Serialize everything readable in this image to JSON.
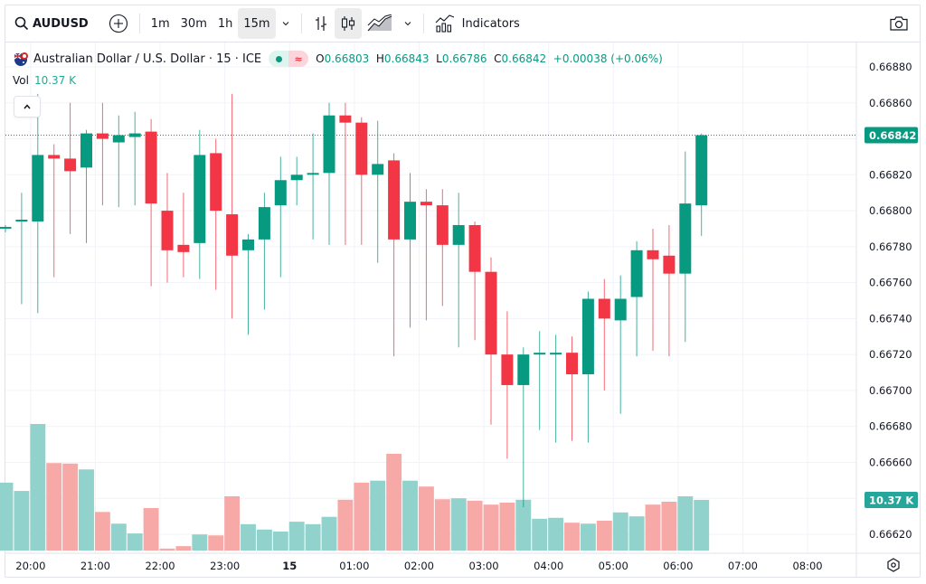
{
  "toolbar": {
    "symbol": "AUDUSD",
    "intervals": [
      "1m",
      "30m",
      "1h",
      "15m"
    ],
    "active_interval": "15m",
    "indicators_label": "Indicators",
    "icons": [
      "search-icon",
      "add-symbol-icon",
      "interval-dropdown-icon",
      "bar-chart-icon",
      "candles-icon",
      "area-chart-icon",
      "chart-type-dropdown-icon",
      "indicators-icon",
      "camera-icon"
    ]
  },
  "legend": {
    "title": "Australian Dollar / U.S. Dollar · 15 · ICE",
    "market_status_icon": "≈",
    "open_label": "O",
    "open": "0.66803",
    "high_label": "H",
    "high": "0.66843",
    "low_label": "L",
    "low": "0.66786",
    "close_label": "C",
    "close": "0.66842",
    "change": "+0.00038 (+0.06%)",
    "vol_label": "Vol",
    "vol_value": "10.37 K"
  },
  "colors": {
    "up": "#089981",
    "down": "#f23645",
    "vol_up": "#92d2cc",
    "vol_down": "#f7a9a7",
    "last_price_bg": "#089981",
    "vol_label_bg": "#26a69a"
  },
  "chart_data": {
    "type": "candlestick",
    "title": "Australian Dollar / U.S. Dollar · 15 · ICE",
    "interval": "15m",
    "ylim": [
      0.6661,
      0.6689
    ],
    "y_ticks": [
      "0.66880",
      "0.66860",
      "0.66820",
      "0.66800",
      "0.66780",
      "0.66760",
      "0.66740",
      "0.66720",
      "0.66700",
      "0.66680",
      "0.66660",
      "0.66620"
    ],
    "x_ticks": [
      {
        "label": "20:00",
        "bar": 1.5
      },
      {
        "label": "21:00",
        "bar": 5.5
      },
      {
        "label": "22:00",
        "bar": 9.5
      },
      {
        "label": "23:00",
        "bar": 13.5
      },
      {
        "label": "15",
        "bar": 17.5,
        "bold": true
      },
      {
        "label": "01:00",
        "bar": 21.5
      },
      {
        "label": "02:00",
        "bar": 25.5
      },
      {
        "label": "03:00",
        "bar": 29.5
      },
      {
        "label": "04:00",
        "bar": 33.5
      },
      {
        "label": "05:00",
        "bar": 37.5
      },
      {
        "label": "06:00",
        "bar": 41.5
      },
      {
        "label": "07:00",
        "bar": 45.5
      },
      {
        "label": "08:00",
        "bar": 49.5
      }
    ],
    "last_price": "0.66842",
    "last_volume": "10.37 K",
    "candles": [
      [
        0.6679,
        0.66792,
        0.66788,
        0.66791
      ],
      [
        0.66794,
        0.6681,
        0.66748,
        0.66795
      ],
      [
        0.66794,
        0.66865,
        0.66743,
        0.66831
      ],
      [
        0.66831,
        0.66837,
        0.66763,
        0.66829
      ],
      [
        0.66829,
        0.6686,
        0.66787,
        0.66822
      ],
      [
        0.66824,
        0.66845,
        0.66782,
        0.66843
      ],
      [
        0.66843,
        0.6686,
        0.66803,
        0.6684
      ],
      [
        0.66838,
        0.66853,
        0.66802,
        0.66842
      ],
      [
        0.66841,
        0.66855,
        0.66803,
        0.66843
      ],
      [
        0.66844,
        0.66851,
        0.66758,
        0.66804
      ],
      [
        0.668,
        0.66821,
        0.6676,
        0.66778
      ],
      [
        0.66781,
        0.6681,
        0.66763,
        0.66777
      ],
      [
        0.66782,
        0.66845,
        0.66762,
        0.66831
      ],
      [
        0.66832,
        0.6684,
        0.66756,
        0.668
      ],
      [
        0.66798,
        0.66865,
        0.6674,
        0.66775
      ],
      [
        0.66778,
        0.66787,
        0.66731,
        0.66784
      ],
      [
        0.66784,
        0.6681,
        0.66745,
        0.66802
      ],
      [
        0.66803,
        0.6683,
        0.66763,
        0.66817
      ],
      [
        0.66817,
        0.6683,
        0.66803,
        0.6682
      ],
      [
        0.66821,
        0.66843,
        0.66784,
        0.66821
      ],
      [
        0.66821,
        0.6686,
        0.66781,
        0.66853
      ],
      [
        0.66853,
        0.6686,
        0.66781,
        0.66849
      ],
      [
        0.66849,
        0.66852,
        0.66781,
        0.6682
      ],
      [
        0.6682,
        0.6685,
        0.66771,
        0.66826
      ],
      [
        0.66828,
        0.66832,
        0.66719,
        0.66784
      ],
      [
        0.66784,
        0.66821,
        0.66735,
        0.66805
      ],
      [
        0.66805,
        0.66812,
        0.66739,
        0.66803
      ],
      [
        0.66803,
        0.66812,
        0.66747,
        0.66781
      ],
      [
        0.66781,
        0.6681,
        0.66724,
        0.66792
      ],
      [
        0.66792,
        0.66794,
        0.66728,
        0.66766
      ],
      [
        0.66766,
        0.66774,
        0.66681,
        0.6672
      ],
      [
        0.6672,
        0.66744,
        0.66662,
        0.66703
      ],
      [
        0.66703,
        0.66724,
        0.66635,
        0.6672
      ],
      [
        0.6672,
        0.66733,
        0.66678,
        0.66721
      ],
      [
        0.6672,
        0.66731,
        0.66671,
        0.66721
      ],
      [
        0.66721,
        0.6673,
        0.66672,
        0.66709
      ],
      [
        0.66709,
        0.66755,
        0.66671,
        0.66751
      ],
      [
        0.66751,
        0.66762,
        0.667,
        0.6674
      ],
      [
        0.66739,
        0.66764,
        0.66687,
        0.66751
      ],
      [
        0.66752,
        0.66783,
        0.66719,
        0.66778
      ],
      [
        0.66778,
        0.6679,
        0.66722,
        0.66773
      ],
      [
        0.66775,
        0.66792,
        0.66719,
        0.66765
      ],
      [
        0.66765,
        0.66833,
        0.66727,
        0.66804
      ],
      [
        0.66803,
        0.66843,
        0.66786,
        0.66842
      ]
    ],
    "candle_fields": [
      "open",
      "high",
      "low",
      "close"
    ],
    "volume": [
      13.9,
      12.2,
      25.9,
      17.9,
      17.8,
      16.6,
      7.9,
      5.5,
      3.5,
      8.7,
      0.4,
      0.9,
      3.3,
      3.1,
      11.1,
      5.4,
      4.3,
      3.9,
      5.9,
      5.4,
      6.9,
      10.4,
      13.9,
      14.3,
      19.8,
      14.3,
      13.1,
      10.5,
      10.7,
      10.2,
      9.4,
      9.8,
      10.4,
      6.5,
      6.7,
      5.7,
      5.5,
      6.1,
      7.8,
      7.0,
      9.4,
      10.0,
      11.1,
      10.37
    ],
    "volume_unit": "K",
    "vol_max_axis": 28
  }
}
